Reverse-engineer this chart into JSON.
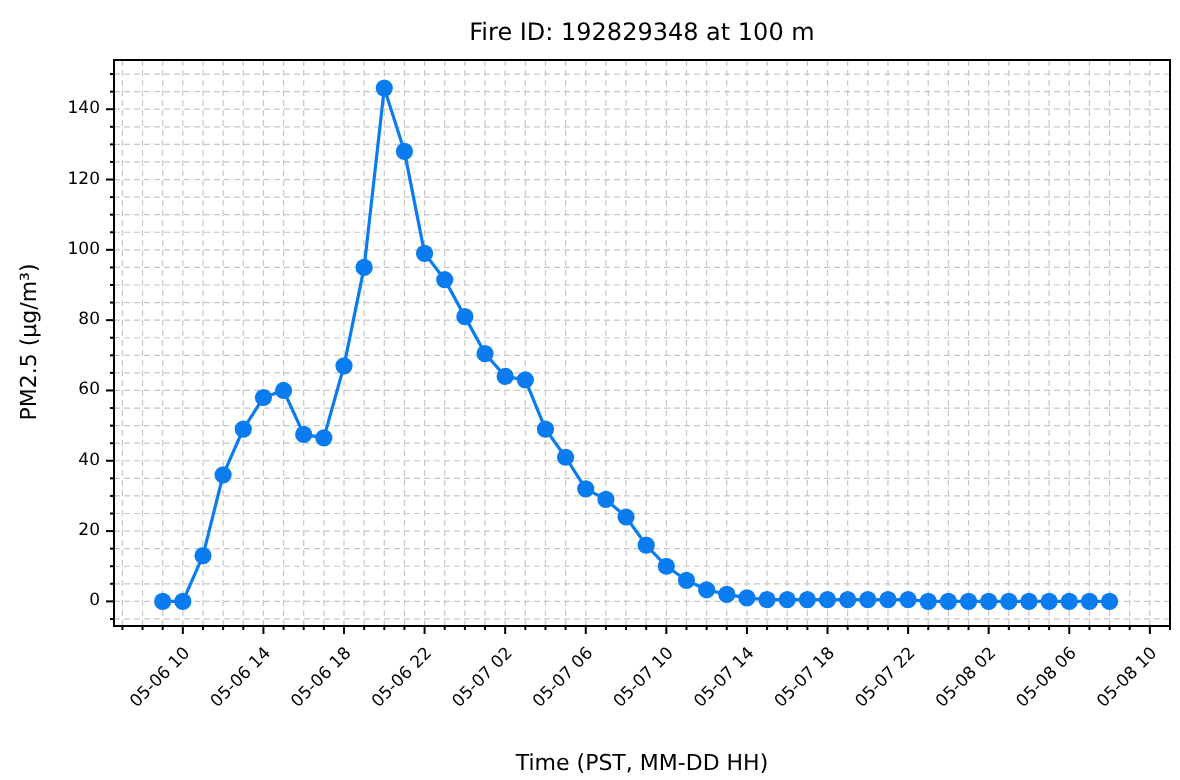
{
  "chart_data": {
    "type": "line",
    "title": "Fire ID: 192829348 at 100 m",
    "xlabel": "Time (PST, MM-DD HH)",
    "ylabel": "PM2.5 (µg/m³)",
    "x": [
      "--05-06T09:00",
      "--05-06T10:00",
      "--05-06T11:00",
      "--05-06T12:00",
      "--05-06T13:00",
      "--05-06T14:00",
      "--05-06T15:00",
      "--05-06T16:00",
      "--05-06T17:00",
      "--05-06T18:00",
      "--05-06T19:00",
      "--05-06T20:00",
      "--05-06T21:00",
      "--05-06T22:00",
      "--05-06T23:00",
      "--05-07T00:00",
      "--05-07T01:00",
      "--05-07T02:00",
      "--05-07T03:00",
      "--05-07T04:00",
      "--05-07T05:00",
      "--05-07T06:00",
      "--05-07T07:00",
      "--05-07T08:00",
      "--05-07T09:00",
      "--05-07T10:00",
      "--05-07T11:00",
      "--05-07T12:00",
      "--05-07T13:00",
      "--05-07T14:00",
      "--05-07T15:00",
      "--05-07T16:00",
      "--05-07T17:00",
      "--05-07T18:00",
      "--05-07T19:00",
      "--05-07T20:00",
      "--05-07T21:00",
      "--05-07T22:00",
      "--05-07T23:00",
      "--05-08T00:00",
      "--05-08T01:00",
      "--05-08T02:00",
      "--05-08T03:00",
      "--05-08T04:00",
      "--05-08T05:00",
      "--05-08T06:00",
      "--05-08T07:00",
      "--05-08T08:00"
    ],
    "series": [
      {
        "color": "#0a7cf0",
        "values": [
          0,
          0,
          13,
          36,
          49,
          58,
          60,
          47.5,
          46.5,
          67,
          95,
          146,
          128,
          99,
          91.5,
          81,
          70.5,
          64,
          63,
          49,
          41,
          32,
          29,
          24,
          16,
          10,
          6,
          3.3,
          2,
          1,
          0.5,
          0.5,
          0.5,
          0.5,
          0.5,
          0.5,
          0.5,
          0.5,
          0,
          0,
          0,
          0,
          0,
          0,
          0,
          0,
          0,
          0
        ]
      }
    ],
    "xlim": [
      "--05-06T06:35",
      "--05-08T11:00"
    ],
    "xticks": [
      {
        "value": "--05-06T07:00",
        "label": null
      },
      {
        "value": "--05-06T08:00",
        "label": null
      },
      {
        "value": "--05-06T09:00",
        "label": null
      },
      {
        "value": "--05-06T10:00",
        "label": "05-06 10"
      },
      {
        "value": "--05-06T11:00",
        "label": null
      },
      {
        "value": "--05-06T12:00",
        "label": null
      },
      {
        "value": "--05-06T13:00",
        "label": null
      },
      {
        "value": "--05-06T14:00",
        "label": "05-06 14"
      },
      {
        "value": "--05-06T15:00",
        "label": null
      },
      {
        "value": "--05-06T16:00",
        "label": null
      },
      {
        "value": "--05-06T17:00",
        "label": null
      },
      {
        "value": "--05-06T18:00",
        "label": "05-06 18"
      },
      {
        "value": "--05-06T19:00",
        "label": null
      },
      {
        "value": "--05-06T20:00",
        "label": null
      },
      {
        "value": "--05-06T21:00",
        "label": null
      },
      {
        "value": "--05-06T22:00",
        "label": "05-06 22"
      },
      {
        "value": "--05-06T23:00",
        "label": null
      },
      {
        "value": "--05-07T00:00",
        "label": null
      },
      {
        "value": "--05-07T01:00",
        "label": null
      },
      {
        "value": "--05-07T02:00",
        "label": "05-07 02"
      },
      {
        "value": "--05-07T03:00",
        "label": null
      },
      {
        "value": "--05-07T04:00",
        "label": null
      },
      {
        "value": "--05-07T05:00",
        "label": null
      },
      {
        "value": "--05-07T06:00",
        "label": "05-07 06"
      },
      {
        "value": "--05-07T07:00",
        "label": null
      },
      {
        "value": "--05-07T08:00",
        "label": null
      },
      {
        "value": "--05-07T09:00",
        "label": null
      },
      {
        "value": "--05-07T10:00",
        "label": "05-07 10"
      },
      {
        "value": "--05-07T11:00",
        "label": null
      },
      {
        "value": "--05-07T12:00",
        "label": null
      },
      {
        "value": "--05-07T13:00",
        "label": null
      },
      {
        "value": "--05-07T14:00",
        "label": "05-07 14"
      },
      {
        "value": "--05-07T15:00",
        "label": null
      },
      {
        "value": "--05-07T16:00",
        "label": null
      },
      {
        "value": "--05-07T17:00",
        "label": null
      },
      {
        "value": "--05-07T18:00",
        "label": "05-07 18"
      },
      {
        "value": "--05-07T19:00",
        "label": null
      },
      {
        "value": "--05-07T20:00",
        "label": null
      },
      {
        "value": "--05-07T21:00",
        "label": null
      },
      {
        "value": "--05-07T22:00",
        "label": "05-07 22"
      },
      {
        "value": "--05-07T23:00",
        "label": null
      },
      {
        "value": "--05-08T00:00",
        "label": null
      },
      {
        "value": "--05-08T01:00",
        "label": null
      },
      {
        "value": "--05-08T02:00",
        "label": "05-08 02"
      },
      {
        "value": "--05-08T03:00",
        "label": null
      },
      {
        "value": "--05-08T04:00",
        "label": null
      },
      {
        "value": "--05-08T05:00",
        "label": null
      },
      {
        "value": "--05-08T06:00",
        "label": "05-08 06"
      },
      {
        "value": "--05-08T07:00",
        "label": null
      },
      {
        "value": "--05-08T08:00",
        "label": null
      },
      {
        "value": "--05-08T09:00",
        "label": null
      },
      {
        "value": "--05-08T10:00",
        "label": "05-08 10"
      },
      {
        "value": "--05-08T11:00",
        "label": null
      }
    ],
    "ylim": [
      -7,
      154
    ],
    "yticks": [
      {
        "value": -5,
        "label": null
      },
      0,
      {
        "value": 5,
        "label": null
      },
      {
        "value": 10,
        "label": null
      },
      {
        "value": 15,
        "label": null
      },
      20,
      {
        "value": 25,
        "label": null
      },
      {
        "value": 30,
        "label": null
      },
      {
        "value": 35,
        "label": null
      },
      40,
      {
        "value": 45,
        "label": null
      },
      {
        "value": 50,
        "label": null
      },
      {
        "value": 55,
        "label": null
      },
      60,
      {
        "value": 65,
        "label": null
      },
      {
        "value": 70,
        "label": null
      },
      {
        "value": 75,
        "label": null
      },
      80,
      {
        "value": 85,
        "label": null
      },
      {
        "value": 90,
        "label": null
      },
      {
        "value": 95,
        "label": null
      },
      100,
      {
        "value": 105,
        "label": null
      },
      {
        "value": 110,
        "label": null
      },
      {
        "value": 115,
        "label": null
      },
      120,
      {
        "value": 125,
        "label": null
      },
      {
        "value": 130,
        "label": null
      },
      {
        "value": 135,
        "label": null
      },
      140,
      {
        "value": 145,
        "label": null
      },
      {
        "value": 150,
        "label": null
      }
    ],
    "grid": true,
    "marker": "circle",
    "line_style": "solid"
  }
}
